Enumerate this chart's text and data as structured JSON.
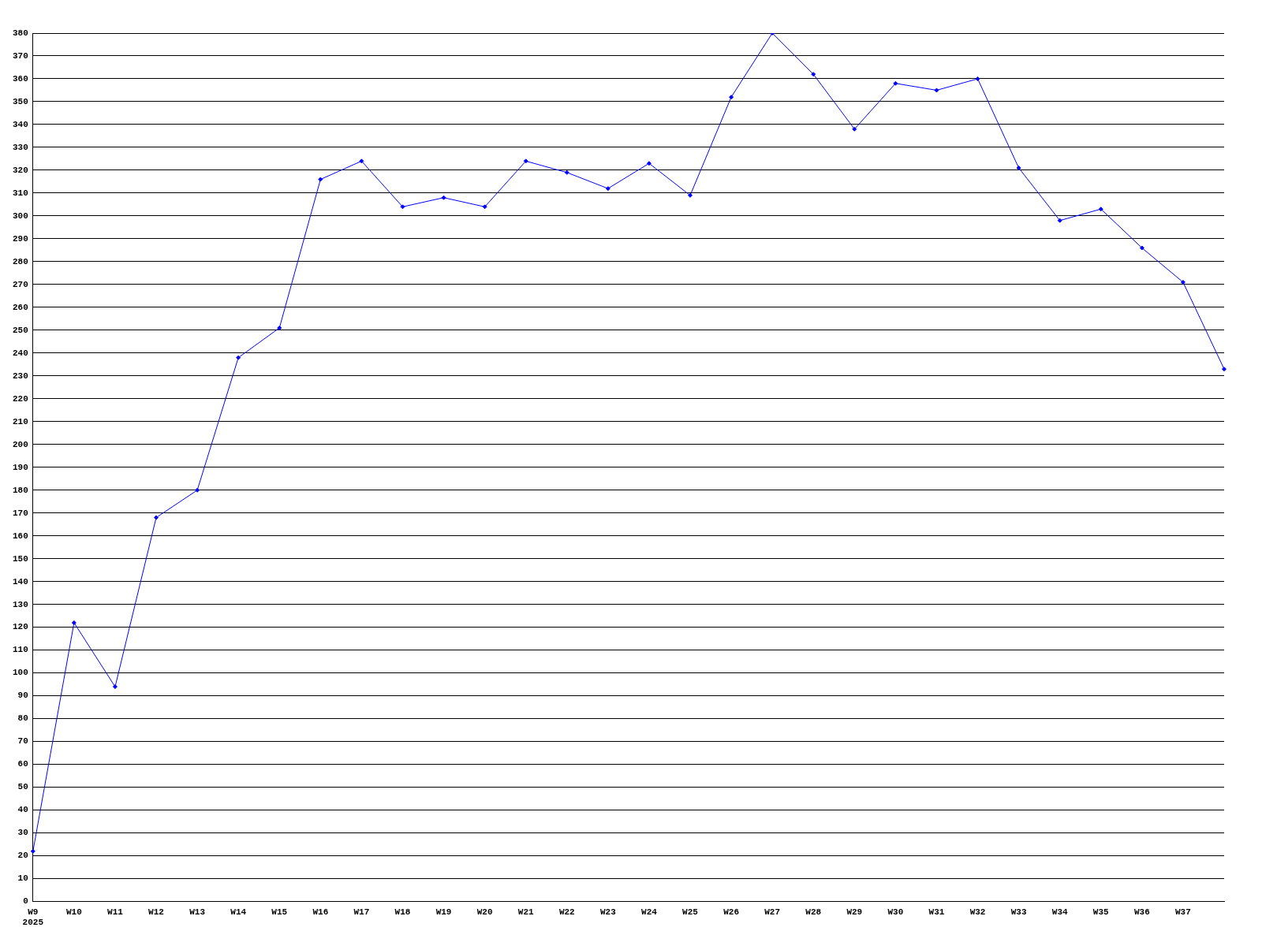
{
  "chart_data": {
    "type": "line",
    "categories": [
      "W9\n2025",
      "W10",
      "W11",
      "W12",
      "W13",
      "W14",
      "W15",
      "W16",
      "W17",
      "W18",
      "W19",
      "W20",
      "W21",
      "W22",
      "W23",
      "W24",
      "W25",
      "W26",
      "W27",
      "W28",
      "W29",
      "W30",
      "W31",
      "W32",
      "W33",
      "W34",
      "W35",
      "W36",
      "W37",
      null
    ],
    "series": [
      {
        "color": "#0000ff",
        "values": [
          22,
          122,
          94,
          168,
          180,
          238,
          251,
          316,
          324,
          304,
          308,
          304,
          324,
          319,
          312,
          323,
          309,
          352,
          380,
          362,
          338,
          358,
          355,
          360,
          321,
          298,
          303,
          286,
          271,
          233
        ]
      }
    ],
    "ylim": [
      0,
      380
    ],
    "yticks": [
      0,
      10,
      20,
      30,
      40,
      50,
      60,
      70,
      80,
      90,
      100,
      110,
      120,
      130,
      140,
      150,
      160,
      170,
      180,
      190,
      200,
      210,
      220,
      230,
      240,
      250,
      260,
      270,
      280,
      290,
      300,
      310,
      320,
      330,
      340,
      350,
      360,
      370,
      380
    ],
    "grid": "y",
    "legend": false,
    "marker": "diamond",
    "line_style": "solid"
  }
}
